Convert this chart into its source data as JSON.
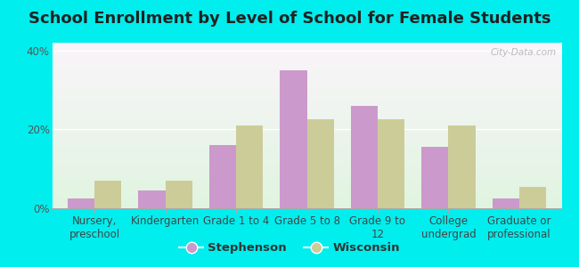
{
  "title": "School Enrollment by Level of School for Female Students",
  "categories": [
    "Nursery,\npreschool",
    "Kindergarten",
    "Grade 1 to 4",
    "Grade 5 to 8",
    "Grade 9 to\n12",
    "College\nundergrad",
    "Graduate or\nprofessional"
  ],
  "stephenson": [
    2.5,
    4.5,
    16.0,
    35.0,
    26.0,
    15.5,
    2.5
  ],
  "wisconsin": [
    7.0,
    7.0,
    21.0,
    22.5,
    22.5,
    21.0,
    5.5
  ],
  "stephenson_color": "#cc99cc",
  "wisconsin_color": "#cccc99",
  "background_color": "#00eeee",
  "ylim": [
    0,
    42
  ],
  "yticks": [
    0,
    20,
    40
  ],
  "ytick_labels": [
    "0%",
    "20%",
    "40%"
  ],
  "legend_labels": [
    "Stephenson",
    "Wisconsin"
  ],
  "watermark": "City-Data.com",
  "bar_width": 0.38,
  "title_fontsize": 13,
  "tick_fontsize": 8.5,
  "legend_fontsize": 9.5
}
